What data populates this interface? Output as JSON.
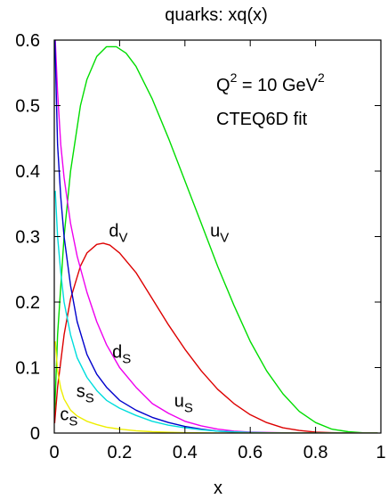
{
  "chart_data": {
    "type": "line",
    "title": "quarks: xq(x)",
    "xlabel": "x",
    "ylabel": "",
    "xlim": [
      0,
      1
    ],
    "ylim": [
      0,
      0.6
    ],
    "x_ticks": [
      "0",
      "0.2",
      "0.4",
      "0.6",
      "0.8",
      "1"
    ],
    "y_ticks": [
      "0",
      "0.1",
      "0.2",
      "0.3",
      "0.4",
      "0.5",
      "0.6"
    ],
    "annotations": {
      "q2": "Q",
      "q2_sup": "2",
      "q2_rest": " = 10 GeV",
      "q2_sup2": "2",
      "fit": "CTEQ6D fit"
    },
    "series": [
      {
        "name_base": "u",
        "name_sub": "V",
        "color": "#00dd00",
        "x": [
          0.001,
          0.01,
          0.03,
          0.05,
          0.08,
          0.1,
          0.13,
          0.16,
          0.19,
          0.22,
          0.25,
          0.3,
          0.35,
          0.4,
          0.45,
          0.5,
          0.55,
          0.6,
          0.65,
          0.7,
          0.75,
          0.8,
          0.85,
          0.9,
          0.95,
          0.99
        ],
        "y": [
          0.03,
          0.15,
          0.3,
          0.4,
          0.5,
          0.54,
          0.575,
          0.59,
          0.59,
          0.58,
          0.56,
          0.51,
          0.45,
          0.385,
          0.32,
          0.255,
          0.195,
          0.14,
          0.095,
          0.06,
          0.033,
          0.016,
          0.006,
          0.002,
          0.0003,
          0
        ]
      },
      {
        "name_base": "d",
        "name_sub": "V",
        "color": "#dd0000",
        "x": [
          0.001,
          0.01,
          0.03,
          0.05,
          0.08,
          0.1,
          0.13,
          0.15,
          0.17,
          0.2,
          0.25,
          0.3,
          0.35,
          0.4,
          0.45,
          0.5,
          0.55,
          0.6,
          0.65,
          0.7,
          0.75,
          0.8,
          0.85,
          0.9,
          0.95,
          0.99
        ],
        "y": [
          0.015,
          0.07,
          0.15,
          0.205,
          0.255,
          0.275,
          0.288,
          0.29,
          0.287,
          0.275,
          0.245,
          0.205,
          0.165,
          0.128,
          0.095,
          0.067,
          0.045,
          0.028,
          0.016,
          0.008,
          0.004,
          0.0015,
          0.0005,
          0.0001,
          0,
          0
        ]
      },
      {
        "name_base": "d",
        "name_sub": "S",
        "color": "#ee00ee",
        "x": [
          0.003,
          0.01,
          0.02,
          0.03,
          0.05,
          0.07,
          0.1,
          0.13,
          0.16,
          0.2,
          0.25,
          0.3,
          0.35,
          0.4,
          0.45,
          0.5,
          0.55,
          0.6,
          0.7,
          0.8,
          0.9,
          0.99
        ],
        "y": [
          0.6,
          0.52,
          0.44,
          0.39,
          0.32,
          0.27,
          0.215,
          0.17,
          0.135,
          0.1,
          0.07,
          0.045,
          0.03,
          0.018,
          0.011,
          0.006,
          0.003,
          0.0015,
          0.0004,
          0.0001,
          0,
          0
        ]
      },
      {
        "name_base": "u",
        "name_sub": "S",
        "color": "#0000cc",
        "x": [
          0.002,
          0.01,
          0.02,
          0.03,
          0.05,
          0.07,
          0.1,
          0.13,
          0.16,
          0.2,
          0.25,
          0.3,
          0.35,
          0.4,
          0.45,
          0.5,
          0.55,
          0.6,
          0.7,
          0.8,
          0.9,
          0.99
        ],
        "y": [
          0.6,
          0.44,
          0.36,
          0.3,
          0.225,
          0.17,
          0.12,
          0.09,
          0.07,
          0.05,
          0.035,
          0.024,
          0.016,
          0.01,
          0.006,
          0.003,
          0.0015,
          0.0007,
          0.0001,
          0,
          0,
          0
        ]
      },
      {
        "name_base": "s",
        "name_sub": "S",
        "color": "#00dddd",
        "x": [
          0.003,
          0.01,
          0.02,
          0.03,
          0.05,
          0.07,
          0.1,
          0.13,
          0.16,
          0.2,
          0.25,
          0.3,
          0.35,
          0.4,
          0.45,
          0.5,
          0.6,
          0.7,
          0.8,
          0.9,
          0.99
        ],
        "y": [
          0.37,
          0.3,
          0.245,
          0.2,
          0.15,
          0.115,
          0.085,
          0.065,
          0.05,
          0.038,
          0.027,
          0.018,
          0.012,
          0.008,
          0.005,
          0.003,
          0.001,
          0.0002,
          0,
          0,
          0
        ]
      },
      {
        "name_base": "c",
        "name_sub": "S",
        "color": "#eeee00",
        "x": [
          0.003,
          0.01,
          0.02,
          0.03,
          0.05,
          0.07,
          0.1,
          0.13,
          0.16,
          0.2,
          0.25,
          0.3,
          0.35,
          0.4,
          0.5,
          0.6,
          0.7,
          0.8,
          0.9,
          0.99
        ],
        "y": [
          0.14,
          0.095,
          0.068,
          0.052,
          0.035,
          0.026,
          0.018,
          0.013,
          0.009,
          0.006,
          0.0035,
          0.002,
          0.0012,
          0.0006,
          0.0002,
          0.0001,
          0,
          0,
          0,
          0
        ]
      }
    ]
  }
}
